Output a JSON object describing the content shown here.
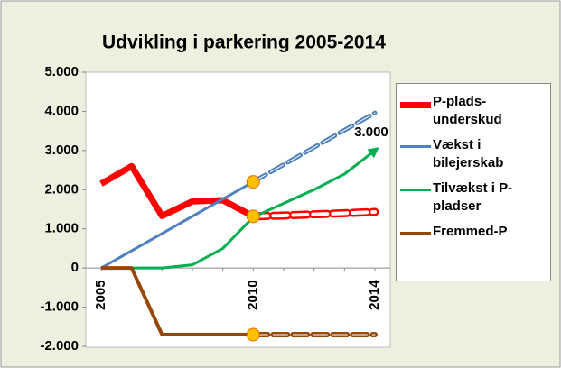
{
  "chart_data": {
    "type": "line",
    "title": "Udvikling i parkering 2005-2014",
    "categories": [
      "2005",
      null,
      null,
      null,
      null,
      "2010",
      null,
      null,
      null,
      "2014"
    ],
    "ylim": [
      -2000,
      5000
    ],
    "yticks": [
      {
        "value": -2000,
        "label": "-2.000"
      },
      {
        "value": -1000,
        "label": "-1.000"
      },
      0,
      {
        "value": 1000,
        "label": "1.000"
      },
      {
        "value": 2000,
        "label": "2.000"
      },
      {
        "value": 3000,
        "label": "3.000"
      },
      {
        "value": 4000,
        "label": "4.000"
      },
      {
        "value": 5000,
        "label": "5.000"
      }
    ],
    "dash_from": 5,
    "series": [
      {
        "name": "P-plads-underskud",
        "color": "#ff0000",
        "width": 7,
        "highlight": true,
        "values": [
          2150,
          2600,
          1330,
          1700,
          1730,
          1320,
          1340,
          1370,
          1400,
          1430
        ]
      },
      {
        "name": "Vækst i bilejerskab",
        "color": "#4f81bd",
        "width": 3,
        "highlight": true,
        "values": [
          0,
          440,
          880,
          1320,
          1760,
          2200,
          2640,
          3080,
          3520,
          3960
        ]
      },
      {
        "name": "Tilvækst i P-pladser",
        "color": "#00b050",
        "width": 3,
        "arrow": true,
        "values": [
          0,
          0,
          0,
          80,
          500,
          1300,
          1650,
          2000,
          2400,
          3000
        ],
        "value_labels": [
          null,
          null,
          null,
          null,
          null,
          null,
          null,
          null,
          null,
          "3.000"
        ]
      },
      {
        "name": "Fremmed-P",
        "color": "#974706",
        "width": 4,
        "highlight": true,
        "values": [
          0,
          0,
          -1700,
          -1700,
          -1700,
          -1700,
          -1700,
          -1700,
          -1700,
          -1700
        ]
      }
    ]
  }
}
